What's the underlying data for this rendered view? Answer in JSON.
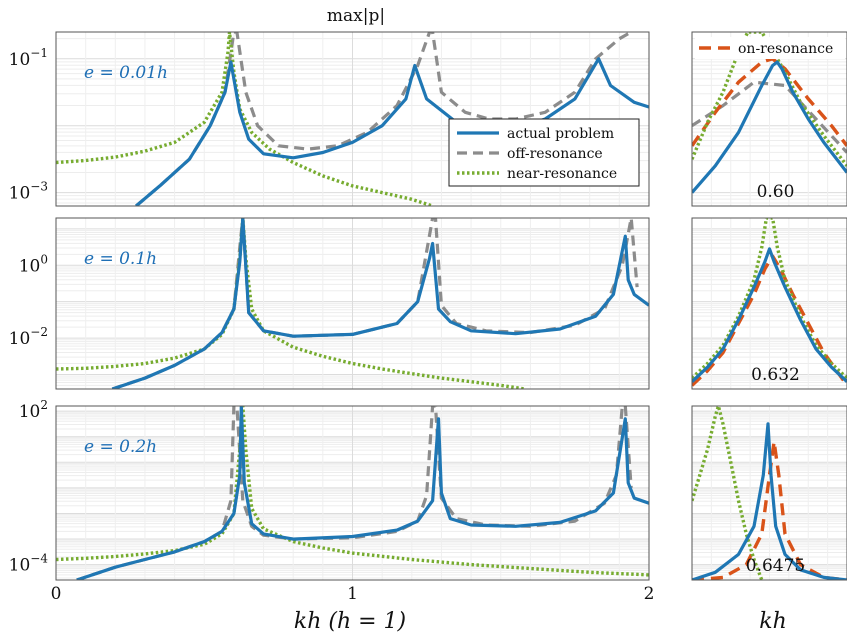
{
  "figure": {
    "top_title": "max|p|",
    "main_xlabel": "kh (h = 1)",
    "zoom_xlabel": "kh"
  },
  "colors": {
    "actual": "#1f77b4",
    "off": "#8c8c8c",
    "near": "#77ac30",
    "on": "#d95319"
  },
  "legend_main": {
    "actual": "actual problem",
    "off": "off-resonance",
    "near": "near-resonance"
  },
  "legend_zoom": {
    "on": "on-resonance"
  },
  "chart_data": [
    {
      "type": "line",
      "panel": "main-1",
      "annotation": "e = 0.01h",
      "xlim": [
        0,
        2
      ],
      "ylim_log10": [
        -3.2,
        -0.6
      ],
      "yscale": "log",
      "yticks": [
        "10^-3",
        "10^-1"
      ],
      "xticks": [],
      "series": [
        {
          "name": "actual problem",
          "x": [
            0.27,
            0.35,
            0.45,
            0.52,
            0.57,
            0.59,
            0.62,
            0.65,
            0.7,
            0.8,
            0.9,
            1.0,
            1.1,
            1.18,
            1.21,
            1.25,
            1.35,
            1.45,
            1.55,
            1.65,
            1.75,
            1.83,
            1.87,
            1.95,
            2.0
          ],
          "log10y": [
            -3.2,
            -2.9,
            -2.5,
            -2.0,
            -1.5,
            -1.05,
            -1.8,
            -2.2,
            -2.42,
            -2.48,
            -2.4,
            -2.25,
            -2.0,
            -1.6,
            -1.1,
            -1.6,
            -1.95,
            -2.05,
            -2.04,
            -1.9,
            -1.6,
            -1.0,
            -1.4,
            -1.65,
            -1.72
          ]
        },
        {
          "name": "off-resonance",
          "x": [
            0.27,
            0.35,
            0.45,
            0.52,
            0.57,
            0.6,
            0.61,
            0.64,
            0.68,
            0.75,
            0.85,
            0.95,
            1.05,
            1.15,
            1.22,
            1.26,
            1.27,
            1.3,
            1.38,
            1.46,
            1.55,
            1.65,
            1.75,
            1.82,
            1.9,
            1.94
          ],
          "log10y": [
            -3.2,
            -2.9,
            -2.5,
            -2.0,
            -1.5,
            -0.6,
            -0.6,
            -1.5,
            -2.0,
            -2.3,
            -2.35,
            -2.3,
            -2.1,
            -1.7,
            -1.1,
            -0.6,
            -0.6,
            -1.5,
            -1.8,
            -1.9,
            -1.9,
            -1.8,
            -1.5,
            -1.0,
            -0.7,
            -0.6
          ]
        },
        {
          "name": "near-resonance",
          "x": [
            0,
            0.1,
            0.2,
            0.3,
            0.4,
            0.5,
            0.56,
            0.58,
            0.585,
            0.6,
            0.62,
            0.66,
            0.72,
            0.8,
            0.9,
            1.0,
            1.1,
            1.2,
            1.27
          ],
          "log10y": [
            -2.55,
            -2.52,
            -2.47,
            -2.38,
            -2.25,
            -1.95,
            -1.5,
            -0.9,
            -0.6,
            -1.2,
            -1.75,
            -2.1,
            -2.35,
            -2.55,
            -2.75,
            -2.9,
            -3.0,
            -3.1,
            -3.2
          ]
        }
      ]
    },
    {
      "type": "line",
      "panel": "main-2",
      "annotation": "e = 0.1h",
      "xlim": [
        0,
        2
      ],
      "ylim_log10": [
        -3.4,
        1.3
      ],
      "yscale": "log",
      "yticks": [
        "10^-2",
        "10^0"
      ],
      "xticks": [],
      "series": [
        {
          "name": "actual problem",
          "x": [
            0.19,
            0.3,
            0.4,
            0.5,
            0.56,
            0.6,
            0.62,
            0.63,
            0.65,
            0.7,
            0.8,
            1.0,
            1.15,
            1.22,
            1.26,
            1.27,
            1.29,
            1.33,
            1.4,
            1.55,
            1.7,
            1.82,
            1.88,
            1.92,
            1.93,
            1.95,
            2.0
          ],
          "log10y": [
            -3.4,
            -3.1,
            -2.75,
            -2.3,
            -1.85,
            -1.2,
            0.1,
            1.3,
            -1.3,
            -1.8,
            -1.95,
            -1.9,
            -1.6,
            -1.0,
            0.2,
            0.6,
            -1.2,
            -1.55,
            -1.8,
            -1.88,
            -1.75,
            -1.4,
            -0.8,
            0.8,
            -0.4,
            -0.8,
            -1.1
          ]
        },
        {
          "name": "off-resonance",
          "x": [
            0.19,
            0.3,
            0.4,
            0.5,
            0.56,
            0.6,
            0.62,
            0.63,
            0.65,
            0.7,
            0.8,
            1.0,
            1.15,
            1.22,
            1.27,
            1.28,
            1.3,
            1.35,
            1.45,
            1.6,
            1.75,
            1.85,
            1.91,
            1.94,
            1.96
          ],
          "log10y": [
            -3.4,
            -3.1,
            -2.75,
            -2.3,
            -1.85,
            -1.2,
            0.5,
            1.3,
            -1.3,
            -1.8,
            -1.95,
            -1.9,
            -1.6,
            -1.0,
            1.3,
            1.3,
            -1.1,
            -1.6,
            -1.8,
            -1.85,
            -1.65,
            -1.2,
            0.0,
            1.3,
            -0.6
          ]
        },
        {
          "name": "near-resonance",
          "x": [
            0,
            0.1,
            0.2,
            0.3,
            0.4,
            0.5,
            0.56,
            0.6,
            0.62,
            0.63,
            0.64,
            0.66,
            0.7,
            0.8,
            0.9,
            1.0,
            1.1,
            1.2,
            1.3,
            1.4,
            1.5,
            1.58
          ],
          "log10y": [
            -2.85,
            -2.83,
            -2.78,
            -2.7,
            -2.55,
            -2.3,
            -1.9,
            -1.2,
            0.2,
            1.3,
            0.2,
            -1.2,
            -1.8,
            -2.25,
            -2.5,
            -2.7,
            -2.85,
            -2.98,
            -3.1,
            -3.2,
            -3.3,
            -3.4
          ]
        }
      ]
    },
    {
      "type": "line",
      "panel": "main-3",
      "annotation": "e = 0.2h",
      "xlim": [
        0,
        2
      ],
      "ylim_log10": [
        -4.6,
        2.2
      ],
      "yscale": "log",
      "yticks": [
        "10^-4",
        "10^2"
      ],
      "xticks": [
        "0",
        "1",
        "2"
      ],
      "series": [
        {
          "name": "actual problem",
          "x": [
            0.07,
            0.2,
            0.3,
            0.4,
            0.5,
            0.56,
            0.6,
            0.62,
            0.625,
            0.635,
            0.66,
            0.7,
            0.8,
            1.0,
            1.15,
            1.22,
            1.27,
            1.29,
            1.3,
            1.33,
            1.4,
            1.55,
            1.7,
            1.82,
            1.88,
            1.92,
            1.93,
            1.95,
            2.0
          ],
          "log10y": [
            -4.6,
            -4.1,
            -3.8,
            -3.5,
            -3.1,
            -2.7,
            -2.0,
            -0.5,
            2.2,
            -0.8,
            -2.4,
            -2.8,
            -3.0,
            -2.9,
            -2.65,
            -2.3,
            -1.5,
            1.7,
            -1.2,
            -2.2,
            -2.45,
            -2.5,
            -2.35,
            -1.9,
            -1.2,
            1.7,
            -0.8,
            -1.4,
            -1.6
          ]
        },
        {
          "name": "off-resonance",
          "x": [
            0.07,
            0.2,
            0.3,
            0.4,
            0.5,
            0.56,
            0.59,
            0.6,
            0.61,
            0.63,
            0.66,
            0.7,
            0.8,
            1.0,
            1.15,
            1.22,
            1.25,
            1.27,
            1.28,
            1.3,
            1.35,
            1.45,
            1.6,
            1.75,
            1.85,
            1.89,
            1.91,
            1.92,
            1.94
          ],
          "log10y": [
            -4.6,
            -4.1,
            -3.8,
            -3.5,
            -3.1,
            -2.7,
            -1.5,
            2.2,
            2.2,
            -1.5,
            -2.5,
            -2.85,
            -3.0,
            -2.95,
            -2.7,
            -2.3,
            -1.3,
            2.2,
            2.2,
            -1.4,
            -2.2,
            -2.45,
            -2.5,
            -2.3,
            -1.6,
            -0.5,
            2.2,
            2.2,
            -1.0
          ]
        },
        {
          "name": "near-resonance",
          "x": [
            0,
            0.1,
            0.2,
            0.3,
            0.4,
            0.5,
            0.56,
            0.6,
            0.62,
            0.63,
            0.64,
            0.66,
            0.7,
            0.8,
            0.9,
            1.0,
            1.2,
            1.4,
            1.6,
            1.8,
            2.0
          ],
          "log10y": [
            -3.8,
            -3.75,
            -3.68,
            -3.58,
            -3.45,
            -3.2,
            -2.8,
            -2.0,
            0.5,
            2.2,
            0.5,
            -1.8,
            -2.6,
            -3.1,
            -3.35,
            -3.55,
            -3.8,
            -4.0,
            -4.15,
            -4.3,
            -4.4
          ]
        }
      ]
    },
    {
      "type": "line",
      "panel": "zoom-1",
      "annotation": "0.60",
      "xlim": [
        0,
        1
      ],
      "ylim_log10": [
        -3.2,
        -0.6
      ],
      "series": [
        {
          "name": "actual problem",
          "x": [
            0,
            0.15,
            0.3,
            0.45,
            0.52,
            0.55,
            0.58,
            0.65,
            0.75,
            0.85,
            1.0
          ],
          "log10y": [
            -3.0,
            -2.6,
            -2.1,
            -1.4,
            -1.1,
            -1.05,
            -1.15,
            -1.5,
            -1.9,
            -2.25,
            -2.7
          ]
        },
        {
          "name": "off-resonance",
          "x": [
            0,
            0.2,
            0.4,
            0.6,
            0.8,
            1.0
          ],
          "log10y": [
            -2.0,
            -1.7,
            -1.35,
            -1.4,
            -1.9,
            -2.4
          ]
        },
        {
          "name": "on-resonance",
          "x": [
            0,
            0.15,
            0.3,
            0.45,
            0.52,
            0.6,
            0.75,
            0.9,
            1.0
          ],
          "log10y": [
            -2.3,
            -1.8,
            -1.35,
            -1.05,
            -1.0,
            -1.15,
            -1.6,
            -2.0,
            -2.3
          ]
        },
        {
          "name": "near-resonance",
          "x": [
            0,
            0.1,
            0.2,
            0.3,
            0.36,
            0.45,
            0.55,
            0.6,
            0.7,
            0.85,
            1.0
          ],
          "log10y": [
            -2.5,
            -1.95,
            -1.5,
            -0.9,
            -0.6,
            -0.6,
            -1.0,
            -1.2,
            -1.65,
            -2.15,
            -2.6
          ]
        }
      ]
    },
    {
      "type": "line",
      "panel": "zoom-2",
      "annotation": "0.632",
      "xlim": [
        0,
        1
      ],
      "ylim_log10": [
        -3.4,
        1.3
      ],
      "series": [
        {
          "name": "actual problem",
          "x": [
            0,
            0.1,
            0.2,
            0.3,
            0.4,
            0.47,
            0.5,
            0.53,
            0.6,
            0.7,
            0.8,
            0.9,
            1.0
          ],
          "log10y": [
            -3.2,
            -2.8,
            -2.3,
            -1.5,
            -0.6,
            0.1,
            0.45,
            0.1,
            -0.6,
            -1.5,
            -2.3,
            -2.8,
            -3.2
          ]
        },
        {
          "name": "on-resonance",
          "x": [
            0,
            0.1,
            0.2,
            0.3,
            0.4,
            0.47,
            0.52,
            0.57,
            0.65,
            0.75,
            0.85,
            1.0
          ],
          "log10y": [
            -3.3,
            -2.9,
            -2.4,
            -1.6,
            -0.8,
            -0.1,
            0.25,
            -0.1,
            -0.8,
            -1.6,
            -2.4,
            -3.3
          ]
        },
        {
          "name": "near-resonance",
          "x": [
            0,
            0.1,
            0.2,
            0.3,
            0.4,
            0.45,
            0.48,
            0.5,
            0.52,
            0.55,
            0.6,
            0.7,
            0.8,
            0.9,
            1.0
          ],
          "log10y": [
            -3.1,
            -2.7,
            -2.2,
            -1.4,
            -0.4,
            0.5,
            1.3,
            1.3,
            1.3,
            0.5,
            -0.4,
            -1.4,
            -2.2,
            -2.7,
            -3.1
          ]
        }
      ]
    },
    {
      "type": "line",
      "panel": "zoom-3",
      "annotation": "0.6475",
      "xlim": [
        0,
        1
      ],
      "ylim_log10": [
        -4.6,
        2.2
      ],
      "series": [
        {
          "name": "actual problem",
          "x": [
            0,
            0.15,
            0.3,
            0.4,
            0.46,
            0.49,
            0.51,
            0.54,
            0.6,
            0.7,
            0.85,
            1.0
          ],
          "log10y": [
            -4.6,
            -4.3,
            -3.6,
            -2.5,
            -0.5,
            1.5,
            -0.5,
            -2.5,
            -3.6,
            -4.2,
            -4.5,
            -4.6
          ]
        },
        {
          "name": "on-resonance",
          "x": [
            0,
            0.2,
            0.35,
            0.45,
            0.5,
            0.53,
            0.56,
            0.6,
            0.7,
            0.85,
            1.0
          ],
          "log10y": [
            -4.6,
            -4.5,
            -4.0,
            -2.8,
            -0.5,
            0.8,
            -0.5,
            -2.8,
            -4.0,
            -4.5,
            -4.6
          ]
        },
        {
          "name": "near-resonance",
          "x": [
            0,
            0.05,
            0.1,
            0.15,
            0.17,
            0.2,
            0.25,
            0.3,
            0.35,
            0.4,
            0.45
          ],
          "log10y": [
            -1.5,
            -0.5,
            0.5,
            1.8,
            2.2,
            1.5,
            0.0,
            -1.5,
            -2.8,
            -3.8,
            -4.6
          ]
        }
      ]
    }
  ]
}
